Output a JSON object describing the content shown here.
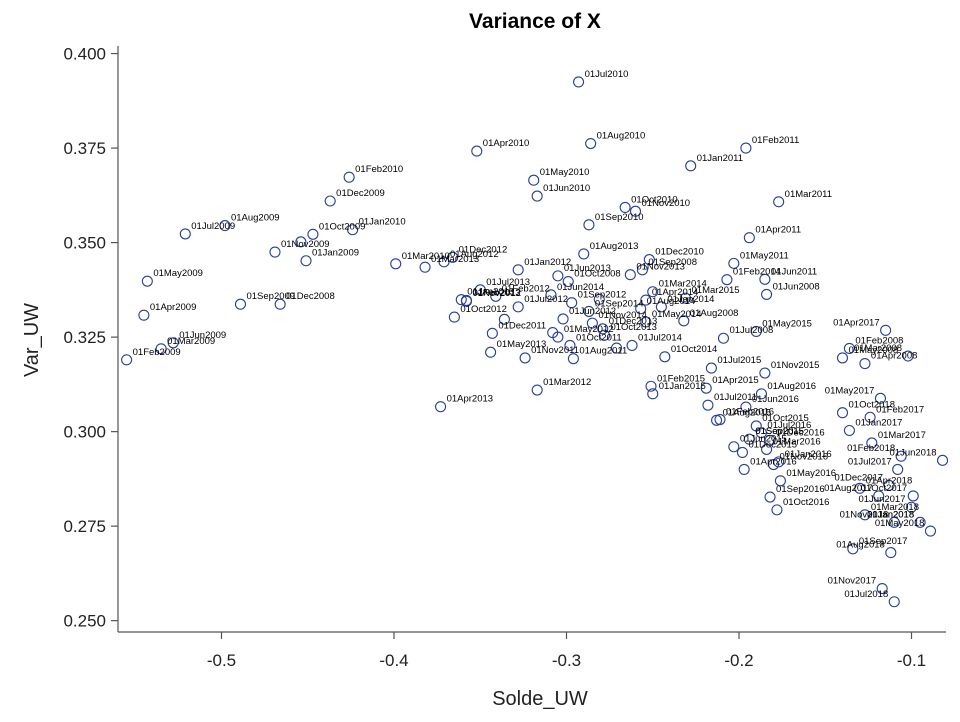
{
  "chart_data": {
    "type": "scatter",
    "title": "Variance of X",
    "xlabel": "Solde_UW",
    "ylabel": "Var_UW",
    "xlim": [
      -0.56,
      -0.08
    ],
    "ylim": [
      0.247,
      0.402
    ],
    "xticks": [
      -0.5,
      -0.4,
      -0.3,
      -0.2,
      -0.1
    ],
    "xtick_labels": [
      "-0.5",
      "-0.4",
      "-0.3",
      "-0.2",
      "-0.1"
    ],
    "yticks": [
      0.25,
      0.275,
      0.3,
      0.325,
      0.35,
      0.375,
      0.4
    ],
    "ytick_labels": [
      "0.250",
      "0.275",
      "0.300",
      "0.325",
      "0.350",
      "0.375",
      "0.400"
    ],
    "grid": false,
    "marker_color": "#2a3f9a",
    "points": [
      {
        "label": "01Jul2010",
        "x": -0.293,
        "y": 0.3925
      },
      {
        "label": "01Aug2010",
        "x": -0.286,
        "y": 0.3762
      },
      {
        "label": "01Apr2010",
        "x": -0.352,
        "y": 0.3742
      },
      {
        "label": "01Feb2011",
        "x": -0.196,
        "y": 0.375
      },
      {
        "label": "01Jan2011",
        "x": -0.228,
        "y": 0.3703
      },
      {
        "label": "01May2010",
        "x": -0.319,
        "y": 0.3665
      },
      {
        "label": "01Feb2010",
        "x": -0.426,
        "y": 0.3673
      },
      {
        "label": "01Jun2010",
        "x": -0.317,
        "y": 0.3623
      },
      {
        "label": "01Mar2011",
        "x": -0.177,
        "y": 0.3608
      },
      {
        "label": "01Oct2010",
        "x": -0.266,
        "y": 0.3593
      },
      {
        "label": "01Nov2010",
        "x": -0.26,
        "y": 0.3583
      },
      {
        "label": "01Dec2009",
        "x": -0.437,
        "y": 0.361
      },
      {
        "label": "01Jan2010",
        "x": -0.424,
        "y": 0.3534
      },
      {
        "label": "01Aug2009",
        "x": -0.498,
        "y": 0.3545
      },
      {
        "label": "01Jul2009",
        "x": -0.521,
        "y": 0.3523
      },
      {
        "label": "01Sep2010",
        "x": -0.287,
        "y": 0.3547
      },
      {
        "label": "01Apr2011",
        "x": -0.194,
        "y": 0.3513
      },
      {
        "label": "01Nov2009",
        "x": -0.469,
        "y": 0.3475
      },
      {
        "label": "01Oct2009",
        "x": -0.447,
        "y": 0.3522
      },
      {
        "label": "01Oct2009b",
        "x": -0.454,
        "y": 0.3502
      },
      {
        "label": "01Aug2013",
        "x": -0.29,
        "y": 0.347
      },
      {
        "label": "01Dec2012",
        "x": -0.366,
        "y": 0.3461
      },
      {
        "label": "01Dec2010",
        "x": -0.252,
        "y": 0.3455
      },
      {
        "label": "01Jan2012",
        "x": -0.328,
        "y": 0.3428
      },
      {
        "label": "01Mar2010",
        "x": -0.399,
        "y": 0.3444
      },
      {
        "label": "01Jan2009",
        "x": -0.451,
        "y": 0.3452
      },
      {
        "label": "01May2011",
        "x": -0.203,
        "y": 0.3445
      },
      {
        "label": "01Mar2013",
        "x": -0.382,
        "y": 0.3435
      },
      {
        "label": "01Sep2008",
        "x": -0.256,
        "y": 0.3428
      },
      {
        "label": "01Aug2012",
        "x": -0.371,
        "y": 0.3449
      },
      {
        "label": "01Jun2013",
        "x": -0.305,
        "y": 0.3412
      },
      {
        "label": "01Nov2013",
        "x": -0.263,
        "y": 0.3415
      },
      {
        "label": "01Jun2011",
        "x": -0.185,
        "y": 0.3403
      },
      {
        "label": "01May2009",
        "x": -0.543,
        "y": 0.3398
      },
      {
        "label": "01Jan2013",
        "x": -0.361,
        "y": 0.3349
      },
      {
        "label": "01Oct2008",
        "x": -0.299,
        "y": 0.3397
      },
      {
        "label": "01Feb2013",
        "x": -0.358,
        "y": 0.3347
      },
      {
        "label": "01Feb2014",
        "x": -0.207,
        "y": 0.3402
      },
      {
        "label": "01Jul2013",
        "x": -0.35,
        "y": 0.3375
      },
      {
        "label": "01Jun2014",
        "x": -0.309,
        "y": 0.3362
      },
      {
        "label": "01Mar2014",
        "x": -0.25,
        "y": 0.337
      },
      {
        "label": "01Sep2009",
        "x": -0.489,
        "y": 0.3337
      },
      {
        "label": "01Dec2008",
        "x": -0.466,
        "y": 0.3337
      },
      {
        "label": "01Apr2014",
        "x": -0.254,
        "y": 0.3348
      },
      {
        "label": "01Mar2015",
        "x": -0.231,
        "y": 0.3353
      },
      {
        "label": "01Feb2012",
        "x": -0.341,
        "y": 0.3358
      },
      {
        "label": "01Sep2012",
        "x": -0.297,
        "y": 0.3341
      },
      {
        "label": "01Nov2012",
        "x": -0.358,
        "y": 0.3345
      },
      {
        "label": "01Sep2015",
        "x": -0.281,
        "y": 0.335
      },
      {
        "label": "01Jul2012",
        "x": -0.328,
        "y": 0.333
      },
      {
        "label": "01Aug2014",
        "x": -0.257,
        "y": 0.3325
      },
      {
        "label": "01Jun2008",
        "x": -0.184,
        "y": 0.3363
      },
      {
        "label": "01Jan2014",
        "x": -0.245,
        "y": 0.333
      },
      {
        "label": "01Sep2014",
        "x": -0.287,
        "y": 0.3318
      },
      {
        "label": "01Apr2009",
        "x": -0.545,
        "y": 0.3308
      },
      {
        "label": "01Oct2012",
        "x": -0.365,
        "y": 0.3303
      },
      {
        "label": "01Sep2012b",
        "x": -0.336,
        "y": 0.3297
      },
      {
        "label": "01Jun2012",
        "x": -0.302,
        "y": 0.3298
      },
      {
        "label": "01Nov2014",
        "x": -0.285,
        "y": 0.3287
      },
      {
        "label": "01Dec2013",
        "x": -0.279,
        "y": 0.3272
      },
      {
        "label": "01May2014",
        "x": -0.254,
        "y": 0.329
      },
      {
        "label": "01Aug2008",
        "x": -0.232,
        "y": 0.3293
      },
      {
        "label": "01May2015",
        "x": -0.19,
        "y": 0.3265
      },
      {
        "label": "01Apr2017",
        "x": -0.115,
        "y": 0.3268
      },
      {
        "label": "01Dec2011",
        "x": -0.343,
        "y": 0.326
      },
      {
        "label": "01Jun2009",
        "x": -0.528,
        "y": 0.3235
      },
      {
        "label": "01Oct2013",
        "x": -0.278,
        "y": 0.3255
      },
      {
        "label": "01May2012",
        "x": -0.305,
        "y": 0.325
      },
      {
        "label": "01Apr2013b",
        "x": -0.308,
        "y": 0.3262
      },
      {
        "label": "01Jul2014",
        "x": -0.262,
        "y": 0.3228
      },
      {
        "label": "01Jul2008",
        "x": -0.209,
        "y": 0.3247
      },
      {
        "label": "01Feb2008",
        "x": -0.136,
        "y": 0.322
      },
      {
        "label": "01Mar2008",
        "x": -0.102,
        "y": 0.32
      },
      {
        "label": "01May2013",
        "x": -0.344,
        "y": 0.321
      },
      {
        "label": "01Oct2011",
        "x": -0.298,
        "y": 0.3228
      },
      {
        "label": "01Jan2012b",
        "x": -0.271,
        "y": 0.3221
      },
      {
        "label": "01Feb2009",
        "x": -0.555,
        "y": 0.319
      },
      {
        "label": "01Mar2009",
        "x": -0.535,
        "y": 0.3219
      },
      {
        "label": "01Nov2011",
        "x": -0.324,
        "y": 0.3195
      },
      {
        "label": "01Aug2011",
        "x": -0.296,
        "y": 0.3193
      },
      {
        "label": "01Oct2014",
        "x": -0.243,
        "y": 0.3198
      },
      {
        "label": "01May2008",
        "x": -0.14,
        "y": 0.3195
      },
      {
        "label": "01Apr2008",
        "x": -0.127,
        "y": 0.318
      },
      {
        "label": "01Jul2015",
        "x": -0.216,
        "y": 0.3168
      },
      {
        "label": "01Mar2012",
        "x": -0.317,
        "y": 0.311
      },
      {
        "label": "01Feb2015",
        "x": -0.251,
        "y": 0.312
      },
      {
        "label": "01Nov2015",
        "x": -0.185,
        "y": 0.3155
      },
      {
        "label": "01May2017",
        "x": -0.118,
        "y": 0.3088
      },
      {
        "label": "01Apr2015",
        "x": -0.219,
        "y": 0.3115
      },
      {
        "label": "01Jan2015",
        "x": -0.25,
        "y": 0.31
      },
      {
        "label": "01Jul2011",
        "x": -0.218,
        "y": 0.307
      },
      {
        "label": "01Apr2013",
        "x": -0.373,
        "y": 0.3066
      },
      {
        "label": "01Aug2016",
        "x": -0.187,
        "y": 0.31
      },
      {
        "label": "01Aug2015",
        "x": -0.213,
        "y": 0.303
      },
      {
        "label": "01Jun2016",
        "x": -0.196,
        "y": 0.3065
      },
      {
        "label": "01Oct2018",
        "x": -0.14,
        "y": 0.305
      },
      {
        "label": "01Feb2017",
        "x": -0.124,
        "y": 0.3038
      },
      {
        "label": "01Feb2016",
        "x": -0.211,
        "y": 0.3032
      },
      {
        "label": "01Jan2017",
        "x": -0.136,
        "y": 0.3003
      },
      {
        "label": "01Oct2015",
        "x": -0.19,
        "y": 0.3015
      },
      {
        "label": "01Jul2016",
        "x": -0.187,
        "y": 0.2997
      },
      {
        "label": "01Mar2017",
        "x": -0.123,
        "y": 0.297
      },
      {
        "label": "01Sep2015",
        "x": -0.194,
        "y": 0.298
      },
      {
        "label": "01Dec2016",
        "x": -0.182,
        "y": 0.2977
      },
      {
        "label": "01Jun2015",
        "x": -0.203,
        "y": 0.296
      },
      {
        "label": "01Dec2015",
        "x": -0.198,
        "y": 0.2945
      },
      {
        "label": "01Mar2016",
        "x": -0.184,
        "y": 0.2953
      },
      {
        "label": "01Feb2018",
        "x": -0.106,
        "y": 0.2935
      },
      {
        "label": "01Jan2016",
        "x": -0.177,
        "y": 0.292
      },
      {
        "label": "01Apr2016",
        "x": -0.197,
        "y": 0.29
      },
      {
        "label": "01Nov2016",
        "x": -0.18,
        "y": 0.2913
      },
      {
        "label": "01Jun2018",
        "x": -0.082,
        "y": 0.2924
      },
      {
        "label": "01Jul2017",
        "x": -0.108,
        "y": 0.29
      },
      {
        "label": "01May2016",
        "x": -0.176,
        "y": 0.287
      },
      {
        "label": "01Apr2018",
        "x": -0.13,
        "y": 0.285
      },
      {
        "label": "01Sep2016",
        "x": -0.182,
        "y": 0.2827
      },
      {
        "label": "01Dec2017",
        "x": -0.113,
        "y": 0.2858
      },
      {
        "label": "01Oct2017",
        "x": -0.099,
        "y": 0.283
      },
      {
        "label": "01Oct2016",
        "x": -0.178,
        "y": 0.2793
      },
      {
        "label": "01Aug2017",
        "x": -0.119,
        "y": 0.283
      },
      {
        "label": "01Jun2017",
        "x": -0.1,
        "y": 0.28
      },
      {
        "label": "01Mar2018",
        "x": -0.127,
        "y": 0.278
      },
      {
        "label": "01Nov2018",
        "x": -0.11,
        "y": 0.276
      },
      {
        "label": "01Jan2018",
        "x": -0.095,
        "y": 0.276
      },
      {
        "label": "01May2018",
        "x": -0.089,
        "y": 0.2737
      },
      {
        "label": "01Sep2017",
        "x": -0.134,
        "y": 0.269
      },
      {
        "label": "01Aug2018",
        "x": -0.112,
        "y": 0.268
      },
      {
        "label": "01Nov2017",
        "x": -0.117,
        "y": 0.2585
      },
      {
        "label": "01Jul2018",
        "x": -0.11,
        "y": 0.255
      }
    ],
    "label_texts": [
      "01Jul2010",
      "01Aug2010",
      "01Apr2010",
      "01Feb2011",
      "01Jan2011",
      "01May2010",
      "01Feb2010",
      "01Jun2010",
      "01Mar2011",
      "01Oct2010",
      "01Nov2010",
      "01Dec2009",
      "01Jan2010",
      "01Aug2009",
      "01Jul2009",
      "01Sep2010",
      "01Apr2011",
      "01Nov2009",
      "01Oct2009",
      "01Aug2013",
      "01Dec2012",
      "01Dec2010",
      "01Jan2012",
      "01Mar2010",
      "01Jan2009",
      "01May2011",
      "01Mar2013",
      "01Sep2008",
      "01Aug2012",
      "01Jun2013",
      "01Nov2013",
      "01Jun2011",
      "01May2009",
      "01Nov2008",
      "01Jan2013",
      "01Oct2008",
      "01Feb2013",
      "01Feb2014",
      "01Jul2013",
      "01Jun2014",
      "01Mar2014",
      "01Sep2009",
      "01Dec2008",
      "01Apr2014",
      "01Mar2015",
      "01Feb2012",
      "01Sep2012",
      "01Nov2012",
      "01Sep2015",
      "01Jul2012",
      "01Aug2014",
      "01Jun2008",
      "01Jan2014",
      "01Sep2014",
      "01Apr2009",
      "01Oct2012",
      "01Jun2012",
      "01Nov2014",
      "01Dec2013",
      "01May2014",
      "01Aug2008",
      "01May2015",
      "01Apr2017",
      "01Dec2011",
      "01Jun2009",
      "01Oct2013",
      "01May2012",
      "01Apr2013",
      "01Jul2014",
      "01Jul2008",
      "01Feb2008",
      "01Mar2008",
      "01May2013",
      "01Oct2011",
      "01Feb2009",
      "01Mar2009",
      "01Nov2011",
      "01Aug2011",
      "01Oct2014",
      "01May2008",
      "01Apr2008",
      "01Jul2015",
      "01Mar2012",
      "01Feb2015",
      "01Nov2015",
      "01May2017",
      "01Apr2015",
      "01Jan2015",
      "01Jul2011",
      "01Aug2016",
      "01Aug2015",
      "01Jun2016",
      "01Oct2018",
      "01Feb2017",
      "01Feb2016",
      "01Jan2017",
      "01Oct2015",
      "01Jul2016",
      "01Mar2017",
      "01Sep2015",
      "01Dec2016",
      "01Jun2015",
      "01Dec2015",
      "01Mar2016",
      "01Feb2018",
      "01Jan2016",
      "01Apr2016",
      "01Nov2016",
      "01Jun2018",
      "01Jul2017",
      "01May2016",
      "01Apr2018",
      "01Sep2016",
      "01Dec2017",
      "01Oct2017",
      "01Oct2016",
      "01Aug2017",
      "01Jun2017",
      "01Mar2018",
      "01Nov2018",
      "01Jan2018",
      "01May2018",
      "01Sep2017",
      "01Aug2018",
      "01Nov2017",
      "01Jul2018",
      "01Sep2018",
      "01Jan2018"
    ]
  }
}
